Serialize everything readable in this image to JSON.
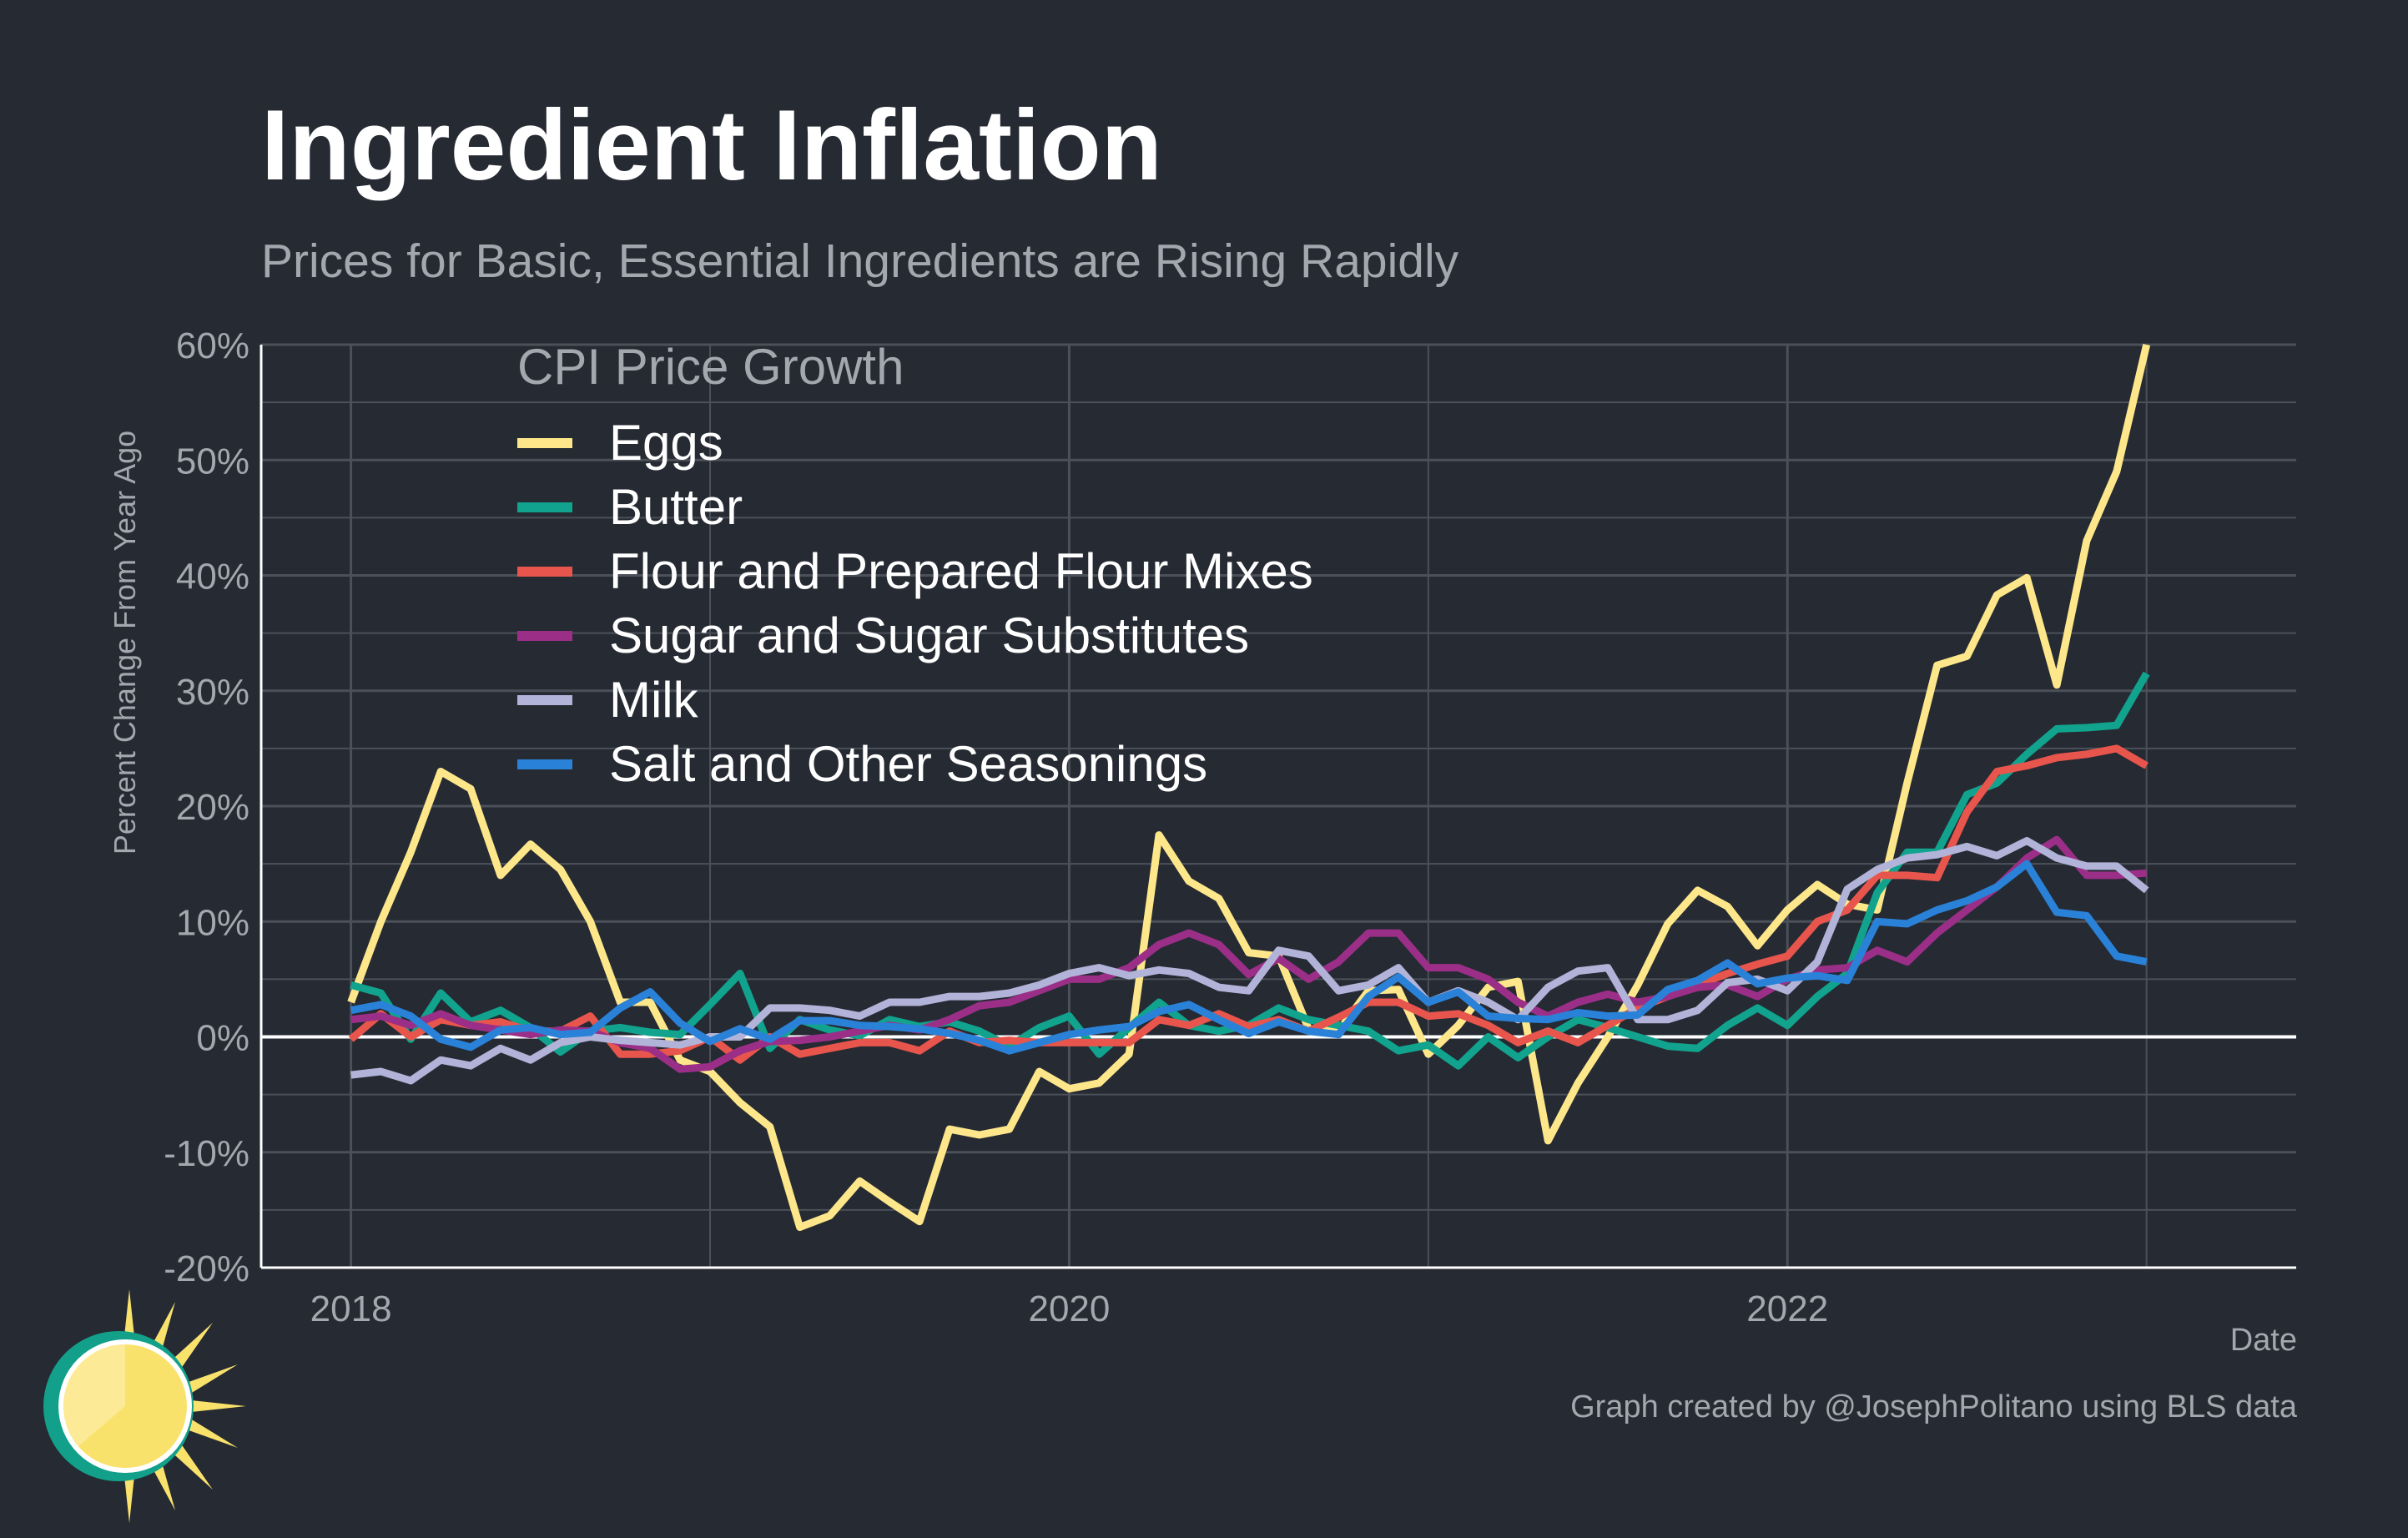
{
  "title": "Ingredient Inflation",
  "subtitle": "Prices for Basic, Essential Ingredients are Rising Rapidly",
  "caption": "Graph created by @JosephPolitano using BLS data",
  "colors": {
    "background": "#252a33",
    "grid": "#4b5059",
    "zero_line": "#ffffff",
    "text_muted": "#a3a7ae",
    "logo_ring": "#12a08a",
    "logo_sun": "#f9e26c"
  },
  "chart_data": {
    "type": "line",
    "title": "Ingredient Inflation",
    "subtitle": "Prices for Basic, Essential Ingredients are Rising Rapidly",
    "xlabel": "Date",
    "ylabel": "Percent Change From Year Ago",
    "x_start": "2018-01",
    "x_end": "2022-11",
    "x_frequency": "monthly",
    "xlim": [
      "2017-10",
      "2023-06"
    ],
    "x_ticks": [
      "2018",
      "2020",
      "2022"
    ],
    "ylim": [
      -20,
      60
    ],
    "y_ticks": [
      -20,
      -10,
      0,
      10,
      20,
      30,
      40,
      50,
      60
    ],
    "y_tick_labels": [
      "-20%",
      "-10%",
      "0%",
      "10%",
      "20%",
      "30%",
      "40%",
      "50%",
      "60%"
    ],
    "grid": true,
    "zero_line": true,
    "legend_title": "CPI Price Growth",
    "legend_position": "top-left",
    "series": [
      {
        "name": "Eggs",
        "color": "#fde78a",
        "values": [
          3,
          10,
          16,
          23,
          21.5,
          14,
          16.7,
          14.5,
          10,
          3,
          3,
          -2,
          -3,
          -5.7,
          -7.8,
          -16.5,
          -15.5,
          -12.5,
          -14.3,
          -16,
          -8,
          -8.5,
          -8,
          -3,
          -4.5,
          -4,
          -1.5,
          17.5,
          13.5,
          12,
          7.3,
          7,
          0.7,
          0.5,
          4,
          4.1,
          -1.5,
          1,
          4.3,
          4.8,
          -9,
          -4,
          0,
          4.5,
          9.8,
          12.7,
          11.3,
          7.9,
          11,
          13.2,
          11.5,
          11,
          22,
          32.2,
          33,
          38.3,
          39.8,
          30.5,
          43,
          49,
          60
        ]
      },
      {
        "name": "Butter",
        "color": "#11a38d",
        "values": [
          4.5,
          3.8,
          -0.2,
          3.8,
          1.3,
          2.3,
          0.8,
          -1.3,
          0.5,
          0.8,
          0.4,
          0.2,
          2.8,
          5.5,
          -1,
          1.5,
          0.6,
          0.1,
          1.5,
          0.9,
          1.3,
          0.5,
          -0.8,
          0.8,
          1.8,
          -1.5,
          0.8,
          3,
          1,
          0.5,
          1,
          2.5,
          1.5,
          1,
          0.5,
          -1.2,
          -0.7,
          -2.5,
          0,
          -1.8,
          0,
          1.5,
          0.8,
          0,
          -0.8,
          -1,
          1,
          2.5,
          1,
          3.5,
          5.5,
          12.5,
          16,
          16,
          21,
          22,
          24.5,
          26.7,
          26.8,
          27,
          31.5
        ]
      },
      {
        "name": "Flour and Prepared Flour Mixes",
        "color": "#e8554c",
        "values": [
          -0.2,
          2,
          0,
          1.5,
          1,
          1.3,
          0.5,
          0.5,
          1.8,
          -1.5,
          -1.5,
          -1.2,
          0,
          -2,
          0,
          -1.5,
          -1,
          -0.5,
          -0.5,
          -1.2,
          0.5,
          -0.5,
          -0.3,
          -0.5,
          -0.5,
          -0.5,
          -0.5,
          1.5,
          1,
          2,
          0.9,
          1.5,
          0.5,
          1.7,
          3,
          3,
          1.8,
          2,
          1,
          -0.5,
          0.5,
          -0.5,
          1,
          2.5,
          3.5,
          4.5,
          5.5,
          6.3,
          7,
          10,
          11,
          14,
          14,
          13.8,
          19.5,
          23,
          23.5,
          24.2,
          24.5,
          25,
          23.5
        ]
      },
      {
        "name": "Sugar and Sugar Substitutes",
        "color": "#9b2f88",
        "values": [
          1.5,
          1.8,
          1,
          2,
          1,
          0.6,
          0.2,
          0.6,
          0.5,
          -0.5,
          -1,
          -2.8,
          -2.6,
          -1.2,
          -0.4,
          -0.3,
          0,
          0.5,
          1,
          0.6,
          1.5,
          2.7,
          3,
          4,
          5,
          5,
          6,
          8,
          9,
          8,
          5.4,
          6.8,
          5,
          6.5,
          9,
          9,
          6,
          6,
          5,
          3,
          1.8,
          3,
          3.7,
          3,
          3.5,
          4.3,
          4.5,
          3.5,
          5,
          5.8,
          6,
          7.5,
          6.5,
          9,
          11,
          13,
          15.5,
          17.1,
          14,
          14,
          14.2
        ]
      },
      {
        "name": "Milk",
        "color": "#b2b3d8",
        "values": [
          -3.3,
          -3,
          -3.8,
          -2,
          -2.5,
          -1,
          -2,
          -0.5,
          0,
          -0.3,
          -0.5,
          -0.7,
          0,
          0,
          2.5,
          2.5,
          2.3,
          1.8,
          3,
          3,
          3.5,
          3.5,
          3.8,
          4.5,
          5.5,
          6,
          5.3,
          5.8,
          5.5,
          4.3,
          4,
          7.5,
          7,
          4,
          4.5,
          6,
          3,
          4,
          3,
          1.5,
          4.3,
          5.7,
          6,
          1.5,
          1.5,
          2.3,
          4.7,
          5,
          4,
          6.5,
          12.8,
          14.5,
          15.5,
          15.8,
          16.5,
          15.7,
          17,
          15.5,
          14.8,
          14.8,
          12.7
        ]
      },
      {
        "name": "Salt and Other Seasonings",
        "color": "#2a81d8",
        "values": [
          2.3,
          2.8,
          1.8,
          -0.2,
          -0.9,
          0.6,
          0.8,
          0.2,
          0.4,
          2.5,
          3.9,
          1.2,
          -0.4,
          0.7,
          -0.2,
          1.4,
          1.4,
          1,
          0.9,
          0.7,
          0.3,
          -0.3,
          -1.2,
          -0.5,
          0.2,
          0.6,
          0.9,
          2.2,
          2.8,
          1.5,
          0.3,
          1.3,
          0.5,
          0.2,
          3.5,
          5.2,
          3,
          3.9,
          1.8,
          1.6,
          1.5,
          2.1,
          1.8,
          1.9,
          4.1,
          4.9,
          6.4,
          4.6,
          5.1,
          5.3,
          4.9,
          10,
          9.8,
          11,
          11.8,
          13,
          15,
          10.8,
          10.5,
          7,
          6.5
        ]
      }
    ]
  }
}
